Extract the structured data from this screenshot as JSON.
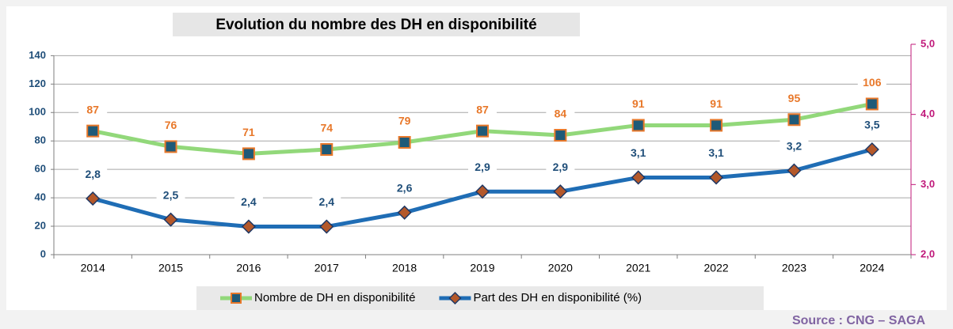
{
  "chart_data": {
    "type": "line",
    "title": "Evolution du nombre des DH en disponibilité",
    "source": "Source : CNG – SAGA",
    "categories": [
      "2014",
      "2015",
      "2016",
      "2017",
      "2018",
      "2019",
      "2020",
      "2021",
      "2022",
      "2023",
      "2024"
    ],
    "series": [
      {
        "name": "Nombre de DH en disponibilité",
        "color": "#92d87a",
        "marker": "square",
        "marker_fill": "#1f5a78",
        "marker_edge": "#e8782a",
        "label_color": "#e8782a",
        "values": [
          87,
          76,
          71,
          74,
          79,
          87,
          84,
          91,
          91,
          95,
          106
        ]
      },
      {
        "name": "Part des DH en disponibilité (%)",
        "color": "#1f6db5",
        "marker": "diamond",
        "marker_fill": "#b4582a",
        "marker_edge": "#203864",
        "label_color": "#1f4e79",
        "axis": "y2",
        "values": [
          2.8,
          2.5,
          2.4,
          2.4,
          2.6,
          2.9,
          2.9,
          3.1,
          3.1,
          3.2,
          3.5
        ],
        "value_labels": [
          "2,8",
          "2,5",
          "2,4",
          "2,4",
          "2,6",
          "2,9",
          "2,9",
          "3,1",
          "3,1",
          "3,2",
          "3,5"
        ]
      }
    ],
    "ylim": [
      0,
      148
    ],
    "yticks": [
      0,
      20,
      40,
      60,
      80,
      100,
      120,
      140
    ],
    "y2lim": [
      2,
      5
    ],
    "y2ticks": [
      {
        "value": 2,
        "label": "2,0"
      },
      {
        "value": 3,
        "label": "3,0"
      },
      {
        "value": 4,
        "label": "4,0"
      },
      {
        "value": 5,
        "label": "5,0"
      }
    ],
    "y2_color": "#c0187a",
    "grid": true,
    "legend": "bottom"
  }
}
